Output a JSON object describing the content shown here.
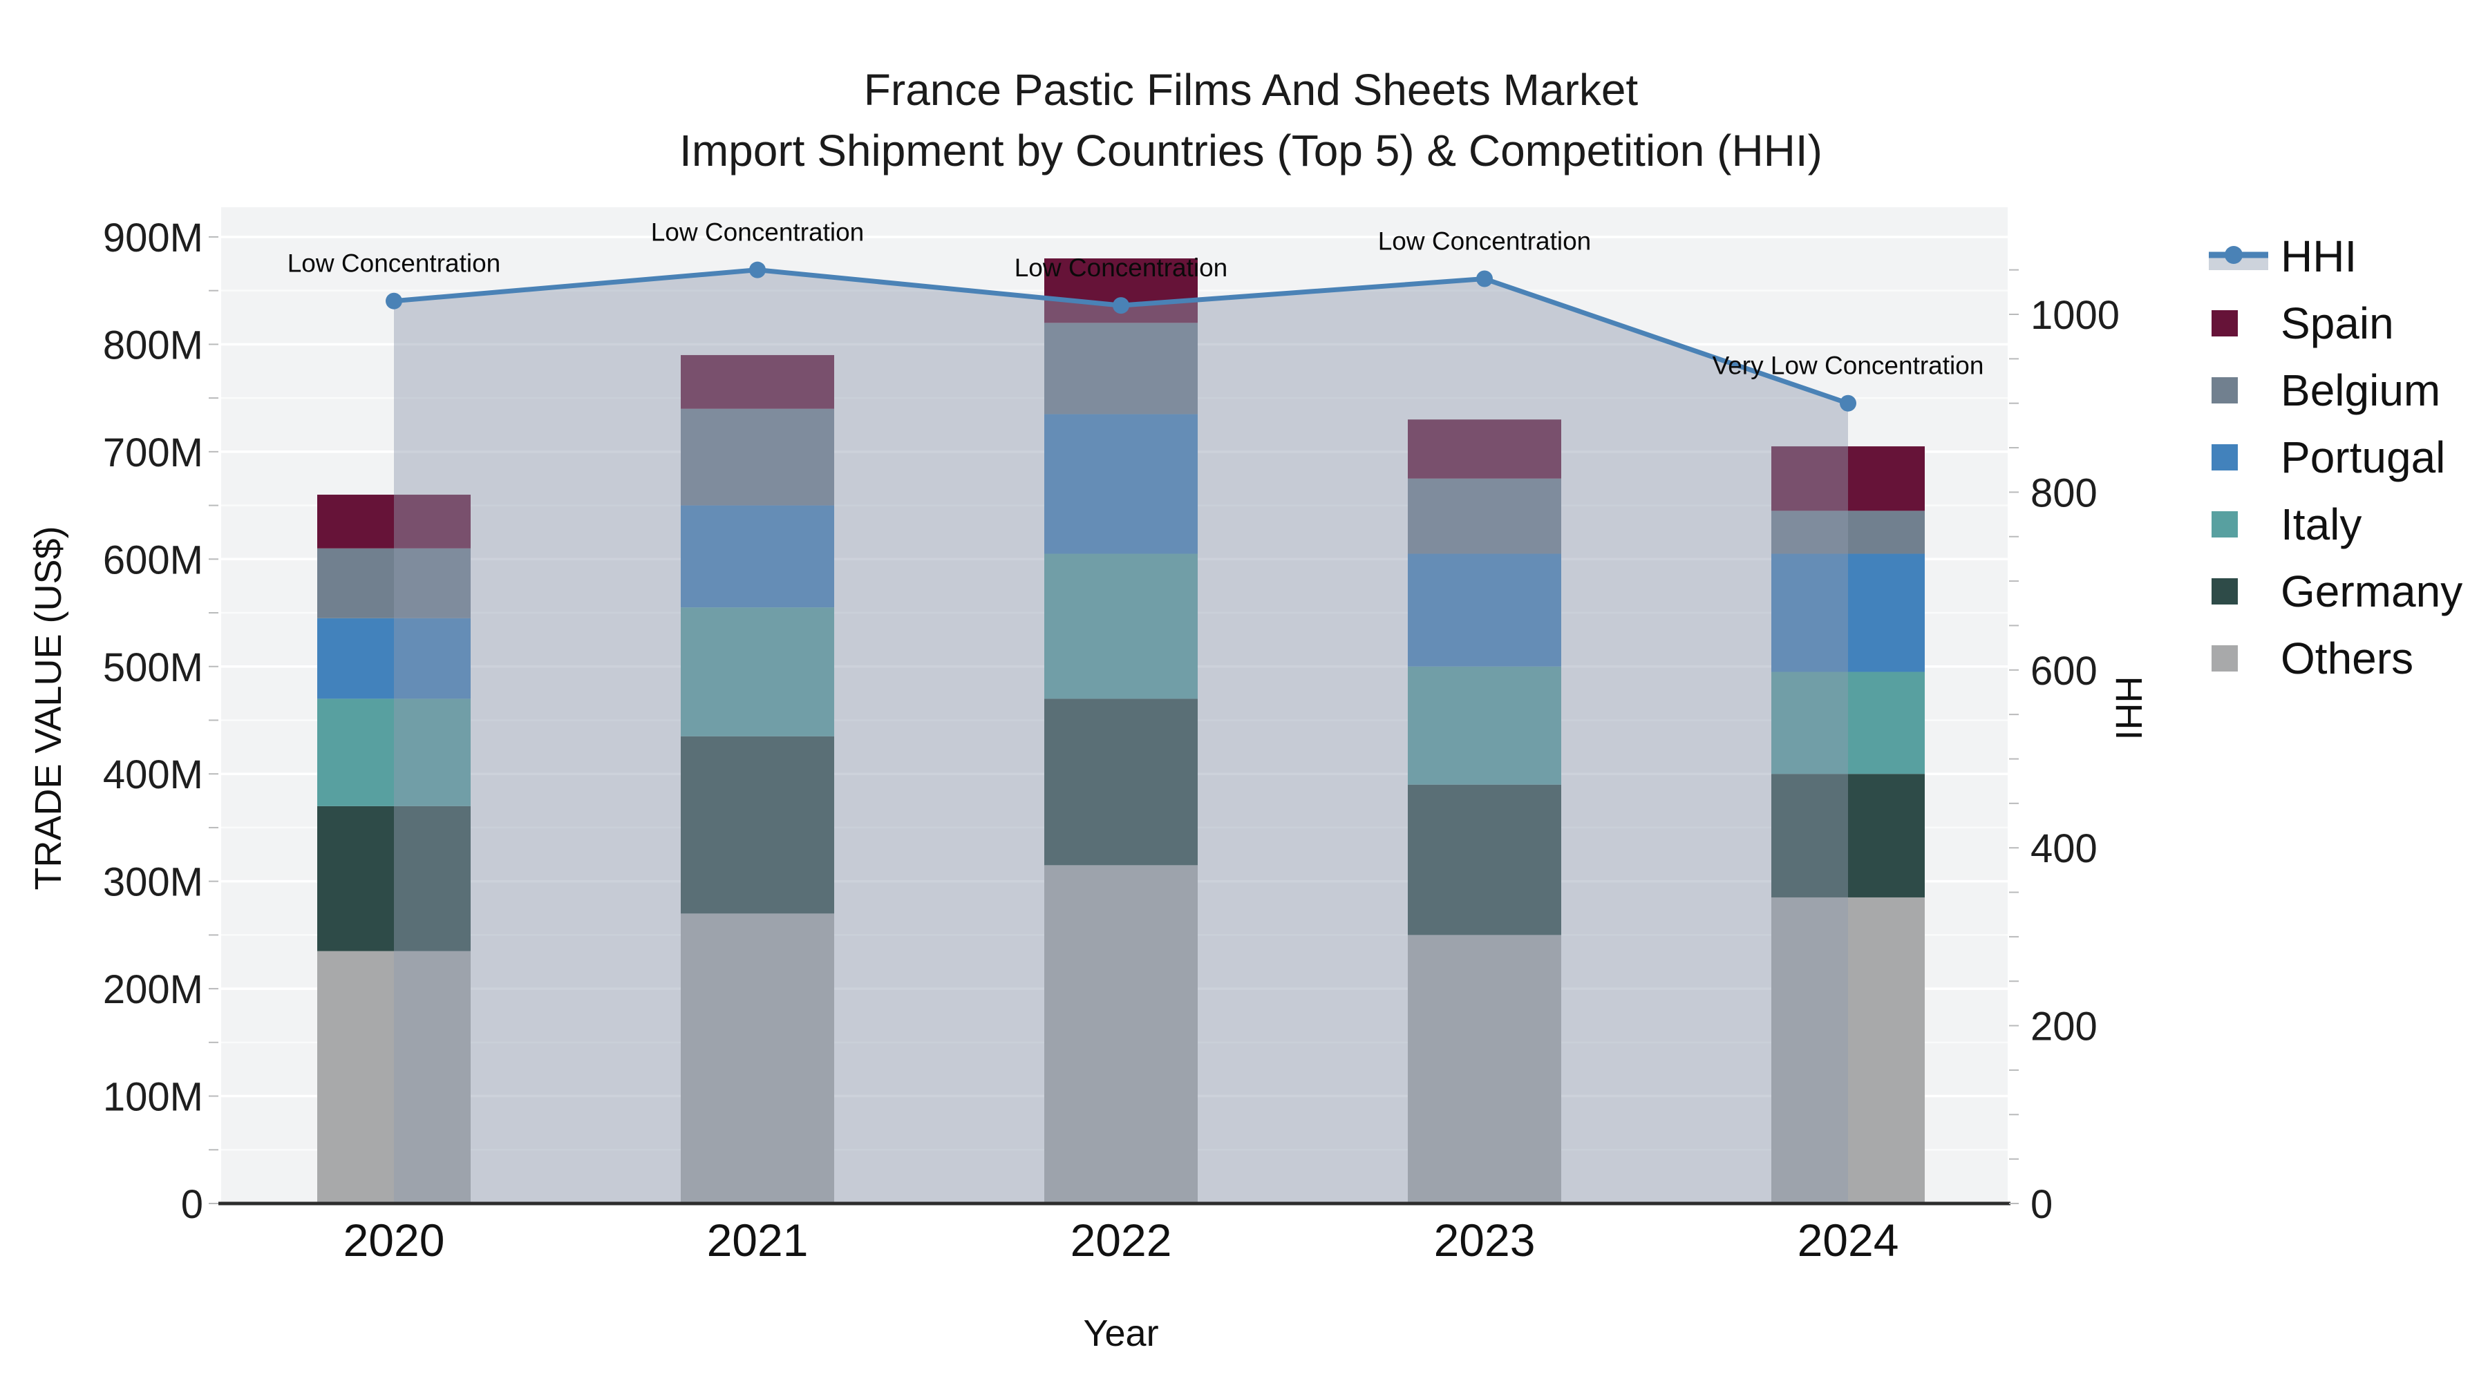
{
  "title": {
    "line1": "France Pastic Films And Sheets Market",
    "line2": "Import Shipment by Countries (Top 5) & Competition (HHI)"
  },
  "axes": {
    "x": {
      "title": "Year",
      "categories": [
        "2020",
        "2021",
        "2022",
        "2023",
        "2024"
      ]
    },
    "y_left": {
      "title": "TRADE VALUE (US$)",
      "tick_labels": [
        "0",
        "100M",
        "200M",
        "300M",
        "400M",
        "500M",
        "600M",
        "700M",
        "800M",
        "900M"
      ],
      "tick_values": [
        0,
        100,
        200,
        300,
        400,
        500,
        600,
        700,
        800,
        900
      ]
    },
    "y_right": {
      "title": "HHI",
      "tick_labels": [
        "0",
        "200",
        "400",
        "600",
        "800",
        "1000"
      ],
      "tick_values": [
        0,
        200,
        400,
        600,
        800,
        1000
      ]
    }
  },
  "legend": [
    {
      "label": "HHI",
      "type": "line",
      "color": "#4a82b6",
      "band_color": "#cdd3dc"
    },
    {
      "label": "Spain",
      "type": "bar",
      "color": "#661338"
    },
    {
      "label": "Belgium",
      "type": "bar",
      "color": "#71808f"
    },
    {
      "label": "Portugal",
      "type": "bar",
      "color": "#4282bc"
    },
    {
      "label": "Italy",
      "type": "bar",
      "color": "#58a0a0"
    },
    {
      "label": "Germany",
      "type": "bar",
      "color": "#2e4b48"
    },
    {
      "label": "Others",
      "type": "bar",
      "color": "#a8a9aa"
    }
  ],
  "chart_data": {
    "type": "bar",
    "subtype": "stacked-bars-with-line-area-overlay",
    "x": [
      "2020",
      "2021",
      "2022",
      "2023",
      "2024"
    ],
    "bar_value_unit": "USD millions",
    "stack_order_bottom_to_top": [
      "Others",
      "Germany",
      "Italy",
      "Portugal",
      "Belgium",
      "Spain"
    ],
    "series": [
      {
        "name": "Others",
        "type": "bar",
        "color": "#a8a9aa",
        "values": [
          235,
          270,
          315,
          250,
          285
        ]
      },
      {
        "name": "Germany",
        "type": "bar",
        "color": "#2e4b48",
        "values": [
          135,
          165,
          155,
          140,
          115
        ]
      },
      {
        "name": "Italy",
        "type": "bar",
        "color": "#58a0a0",
        "values": [
          100,
          120,
          135,
          110,
          95
        ]
      },
      {
        "name": "Portugal",
        "type": "bar",
        "color": "#4282bc",
        "values": [
          75,
          95,
          130,
          105,
          110
        ]
      },
      {
        "name": "Belgium",
        "type": "bar",
        "color": "#71808f",
        "values": [
          65,
          90,
          85,
          70,
          40
        ]
      },
      {
        "name": "Spain",
        "type": "bar",
        "color": "#661338",
        "values": [
          50,
          50,
          60,
          55,
          60
        ]
      }
    ],
    "bar_totals": [
      660,
      790,
      880,
      730,
      705
    ],
    "hhi_line": {
      "name": "HHI",
      "type": "line",
      "axis": "right",
      "color": "#4a82b6",
      "area_fill_color": "#909CAF",
      "area_fill_opacity": 0.45,
      "values": [
        1015,
        1050,
        1010,
        1040,
        900
      ],
      "annotations": [
        "Low Concentration",
        "Low Concentration",
        "Low Concentration",
        "Low Concentration",
        "Very Low Concentration"
      ]
    },
    "ylim_left": [
      0,
      900
    ],
    "ylim_right": [
      0,
      1000
    ],
    "grid": "horizontal",
    "plot_background": "#f2f3f4",
    "legend_position": "right"
  }
}
